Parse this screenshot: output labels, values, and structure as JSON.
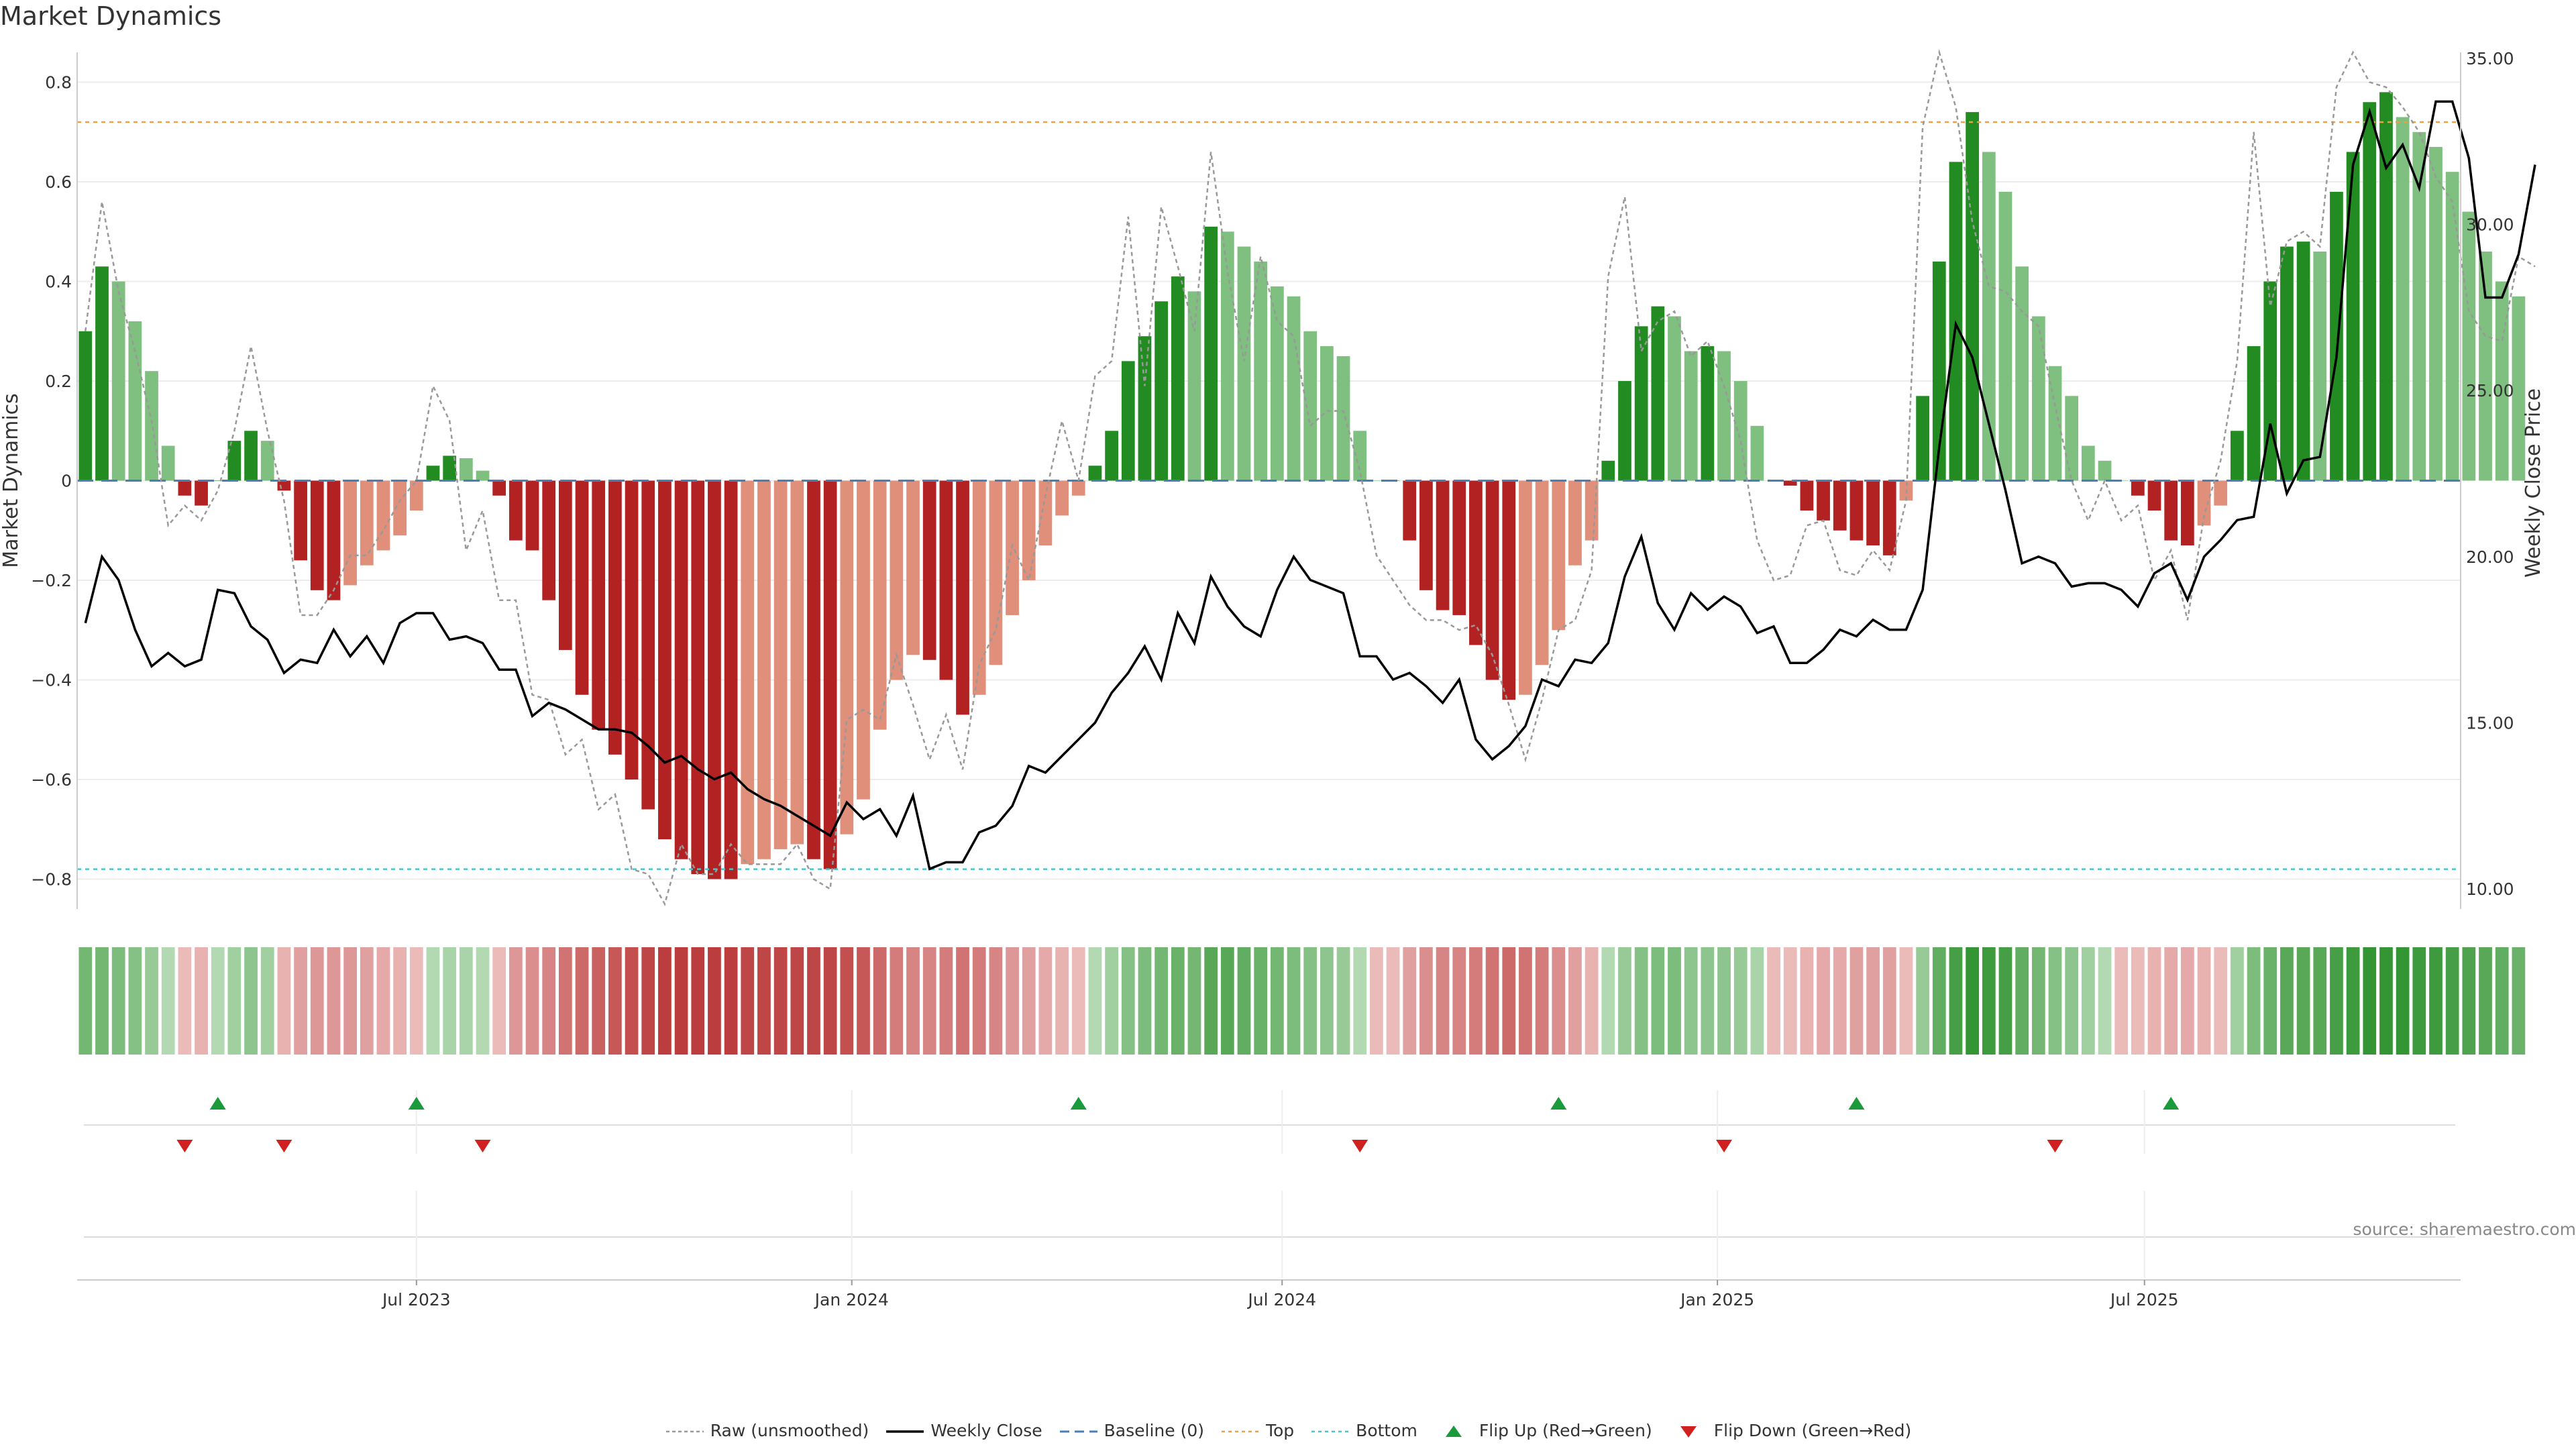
{
  "title": "Market Dynamics",
  "source_text": "source: sharemaestro.com",
  "colors": {
    "strong_green": "#228b22",
    "light_green": "#7fbf7f",
    "strong_red": "#b22222",
    "light_red": "#e0907a",
    "close_line": "#000000",
    "raw_line": "#999999",
    "baseline": "#4a7fb5",
    "top_line": "#f0a040",
    "bottom_line": "#40c8d0",
    "flip_up": "#1a9a3a",
    "flip_down": "#d02020"
  },
  "legend": [
    {
      "key": "raw",
      "label": "Raw (unsmoothed)"
    },
    {
      "key": "close",
      "label": "Weekly Close"
    },
    {
      "key": "baseline",
      "label": "Baseline (0)"
    },
    {
      "key": "top",
      "label": "Top"
    },
    {
      "key": "bottom",
      "label": "Bottom"
    },
    {
      "key": "flip_up",
      "label": "Flip Up (Red→Green)"
    },
    {
      "key": "flip_down",
      "label": "Flip Down (Green→Red)"
    }
  ],
  "chart_data": {
    "type": "bar",
    "title": "Market Dynamics",
    "ylabel": "Market Dynamics",
    "y2label": "Weekly Close Price",
    "ylim": [
      -0.86,
      0.86
    ],
    "y2lim": [
      10,
      35
    ],
    "yticks": [
      {
        "v": 0.8,
        "label": "0.8"
      },
      {
        "v": 0.6,
        "label": "0.6"
      },
      {
        "v": 0.4,
        "label": "0.4"
      },
      {
        "v": 0.2,
        "label": "0.2"
      },
      {
        "v": 0,
        "label": "0"
      },
      {
        "v": -0.2,
        "label": "−0.2"
      },
      {
        "v": -0.4,
        "label": "−0.4"
      },
      {
        "v": -0.6,
        "label": "−0.6"
      },
      {
        "v": -0.8,
        "label": "−0.8"
      }
    ],
    "y2ticks": [
      {
        "v": 35,
        "label": "35.00"
      },
      {
        "v": 30,
        "label": "30.00"
      },
      {
        "v": 25,
        "label": "25.00"
      },
      {
        "v": 20,
        "label": "20.00"
      },
      {
        "v": 15,
        "label": "15.00"
      },
      {
        "v": 10,
        "label": "10.00"
      }
    ],
    "x_range_weeks": 144,
    "xticks": [
      {
        "week": 20,
        "label": "Jul 2023"
      },
      {
        "week": 46.3,
        "label": "Jan 2024"
      },
      {
        "week": 72.3,
        "label": "Jul 2024"
      },
      {
        "week": 98.6,
        "label": "Jan 2025"
      },
      {
        "week": 124.4,
        "label": "Jul 2025"
      }
    ],
    "top_level": 0.72,
    "bottom_level": -0.78,
    "baseline_level": 0,
    "momentum": [
      0.3,
      0.43,
      0.4,
      0.32,
      0.22,
      0.07,
      -0.03,
      -0.05,
      0.0,
      0.08,
      0.1,
      0.08,
      -0.02,
      -0.16,
      -0.22,
      -0.24,
      -0.21,
      -0.17,
      -0.14,
      -0.11,
      -0.06,
      0.03,
      0.05,
      0.045,
      0.02,
      -0.03,
      -0.12,
      -0.14,
      -0.24,
      -0.34,
      -0.43,
      -0.5,
      -0.55,
      -0.6,
      -0.66,
      -0.72,
      -0.76,
      -0.79,
      -0.8,
      -0.8,
      -0.77,
      -0.76,
      -0.74,
      -0.73,
      -0.76,
      -0.78,
      -0.71,
      -0.64,
      -0.5,
      -0.4,
      -0.35,
      -0.36,
      -0.4,
      -0.47,
      -0.43,
      -0.37,
      -0.27,
      -0.2,
      -0.13,
      -0.07,
      -0.03,
      0.03,
      0.1,
      0.24,
      0.29,
      0.36,
      0.41,
      0.38,
      0.51,
      0.5,
      0.47,
      0.44,
      0.39,
      0.37,
      0.3,
      0.27,
      0.25,
      0.1,
      0.0,
      0.0,
      -0.12,
      -0.22,
      -0.26,
      -0.27,
      -0.33,
      -0.4,
      -0.44,
      -0.43,
      -0.37,
      -0.3,
      -0.17,
      -0.12,
      0.04,
      0.2,
      0.31,
      0.35,
      0.33,
      0.26,
      0.27,
      0.26,
      0.2,
      0.11,
      0.0,
      -0.01,
      -0.06,
      -0.08,
      -0.1,
      -0.12,
      -0.13,
      -0.15,
      -0.04,
      0.17,
      0.44,
      0.64,
      0.74,
      0.66,
      0.58,
      0.43,
      0.33,
      0.23,
      0.17,
      0.07,
      0.04,
      0.0,
      -0.03,
      -0.06,
      -0.12,
      -0.13,
      -0.09,
      -0.05,
      0.1,
      0.27,
      0.4,
      0.47,
      0.48,
      0.46,
      0.58,
      0.66,
      0.76,
      0.78,
      0.73,
      0.7,
      0.67,
      0.62,
      0.54,
      0.46,
      0.4,
      0.37
    ],
    "raw": [
      0.3,
      0.56,
      0.38,
      0.26,
      0.12,
      -0.09,
      -0.05,
      -0.08,
      -0.02,
      0.1,
      0.27,
      0.1,
      -0.04,
      -0.27,
      -0.27,
      -0.22,
      -0.15,
      -0.15,
      -0.1,
      -0.04,
      0.0,
      0.19,
      0.12,
      -0.14,
      -0.06,
      -0.24,
      -0.24,
      -0.43,
      -0.44,
      -0.55,
      -0.52,
      -0.66,
      -0.63,
      -0.78,
      -0.79,
      -0.85,
      -0.73,
      -0.79,
      -0.79,
      -0.73,
      -0.77,
      -0.77,
      -0.77,
      -0.73,
      -0.8,
      -0.82,
      -0.48,
      -0.46,
      -0.48,
      -0.35,
      -0.45,
      -0.56,
      -0.47,
      -0.58,
      -0.37,
      -0.3,
      -0.13,
      -0.2,
      -0.03,
      0.12,
      0.0,
      0.21,
      0.24,
      0.53,
      0.19,
      0.55,
      0.43,
      0.3,
      0.66,
      0.42,
      0.24,
      0.45,
      0.32,
      0.29,
      0.11,
      0.14,
      0.14,
      0.02,
      -0.15,
      -0.2,
      -0.25,
      -0.28,
      -0.28,
      -0.3,
      -0.29,
      -0.35,
      -0.45,
      -0.56,
      -0.44,
      -0.3,
      -0.28,
      -0.18,
      0.41,
      0.57,
      0.26,
      0.32,
      0.34,
      0.25,
      0.28,
      0.19,
      0.08,
      -0.12,
      -0.2,
      -0.19,
      -0.09,
      -0.08,
      -0.18,
      -0.19,
      -0.14,
      -0.18,
      -0.04,
      0.71,
      0.86,
      0.75,
      0.52,
      0.39,
      0.38,
      0.34,
      0.31,
      0.15,
      0.0,
      -0.08,
      0.0,
      -0.08,
      -0.05,
      -0.2,
      -0.14,
      -0.28,
      -0.07,
      0.04,
      0.24,
      0.7,
      0.35,
      0.48,
      0.5,
      0.47,
      0.79,
      0.86,
      0.8,
      0.79,
      0.75,
      0.7,
      0.61,
      0.56,
      0.34,
      0.29,
      0.28,
      0.45,
      0.43
    ],
    "weekly_close": [
      18.0,
      20.0,
      19.3,
      17.8,
      16.7,
      17.1,
      16.7,
      16.9,
      19.0,
      18.9,
      17.9,
      17.5,
      16.5,
      16.9,
      16.8,
      17.8,
      17.0,
      17.6,
      16.8,
      18.0,
      18.3,
      18.3,
      17.5,
      17.6,
      17.4,
      16.6,
      16.6,
      15.2,
      15.6,
      15.4,
      15.1,
      14.8,
      14.8,
      14.7,
      14.3,
      13.8,
      14.0,
      13.6,
      13.3,
      13.5,
      13.0,
      12.7,
      12.5,
      12.2,
      11.9,
      11.6,
      12.6,
      12.1,
      12.4,
      11.6,
      12.8,
      10.6,
      10.8,
      10.8,
      11.7,
      11.9,
      12.5,
      13.7,
      13.5,
      14.0,
      14.5,
      15.0,
      15.9,
      16.5,
      17.3,
      16.3,
      18.3,
      17.4,
      19.4,
      18.5,
      17.9,
      17.6,
      19.0,
      20.0,
      19.3,
      19.1,
      18.9,
      17.0,
      17.0,
      16.3,
      16.5,
      16.1,
      15.6,
      16.3,
      14.5,
      13.9,
      14.3,
      14.9,
      16.3,
      16.1,
      16.9,
      16.8,
      17.4,
      19.4,
      20.6,
      18.6,
      17.8,
      18.9,
      18.4,
      18.8,
      18.5,
      17.7,
      17.9,
      16.8,
      16.8,
      17.2,
      17.8,
      17.6,
      18.1,
      17.8,
      17.8,
      19.0,
      23.3,
      27.0,
      26.0,
      24.0,
      22.0,
      19.8,
      20.0,
      19.8,
      19.1,
      19.2,
      19.2,
      19.0,
      18.5,
      19.5,
      19.8,
      18.7,
      20.0,
      20.5,
      21.1,
      21.2,
      24.0,
      21.9,
      22.9,
      23.0,
      26.0,
      31.8,
      33.4,
      31.7,
      32.4,
      31.1,
      33.7,
      33.7,
      32.0,
      27.8,
      27.8,
      29.1,
      31.8
    ],
    "heat_strip": [
      0.55,
      0.55,
      0.5,
      0.45,
      0.35,
      0.2,
      -0.15,
      -0.2,
      0.2,
      0.3,
      0.4,
      0.3,
      -0.2,
      -0.3,
      -0.35,
      -0.35,
      -0.35,
      -0.3,
      -0.25,
      -0.2,
      -0.15,
      0.2,
      0.25,
      0.25,
      0.2,
      -0.15,
      -0.35,
      -0.4,
      -0.45,
      -0.55,
      -0.6,
      -0.65,
      -0.7,
      -0.75,
      -0.8,
      -0.85,
      -0.85,
      -0.85,
      -0.85,
      -0.85,
      -0.8,
      -0.8,
      -0.8,
      -0.8,
      -0.8,
      -0.8,
      -0.75,
      -0.7,
      -0.6,
      -0.5,
      -0.45,
      -0.45,
      -0.5,
      -0.55,
      -0.5,
      -0.45,
      -0.35,
      -0.3,
      -0.25,
      -0.2,
      -0.15,
      0.2,
      0.3,
      0.45,
      0.5,
      0.55,
      0.6,
      0.55,
      0.7,
      0.7,
      0.65,
      0.6,
      0.55,
      0.5,
      0.45,
      0.4,
      0.35,
      0.2,
      -0.15,
      -0.15,
      -0.3,
      -0.4,
      -0.45,
      -0.45,
      -0.5,
      -0.55,
      -0.6,
      -0.55,
      -0.5,
      -0.4,
      -0.3,
      -0.2,
      0.2,
      0.35,
      0.45,
      0.5,
      0.5,
      0.4,
      0.4,
      0.4,
      0.35,
      0.25,
      -0.15,
      -0.15,
      -0.2,
      -0.25,
      -0.25,
      -0.3,
      -0.3,
      -0.3,
      -0.15,
      0.35,
      0.65,
      0.8,
      0.9,
      0.85,
      0.8,
      0.65,
      0.55,
      0.45,
      0.4,
      0.3,
      0.2,
      -0.15,
      -0.15,
      -0.2,
      -0.25,
      -0.25,
      -0.2,
      -0.15,
      0.3,
      0.5,
      0.6,
      0.7,
      0.7,
      0.7,
      0.8,
      0.85,
      0.9,
      0.9,
      0.9,
      0.85,
      0.85,
      0.8,
      0.75,
      0.7,
      0.65,
      0.6
    ],
    "flip_up_weeks": [
      8,
      20,
      60,
      89,
      107,
      126
    ],
    "flip_down_weeks": [
      6,
      12,
      24,
      77,
      99,
      119
    ]
  }
}
